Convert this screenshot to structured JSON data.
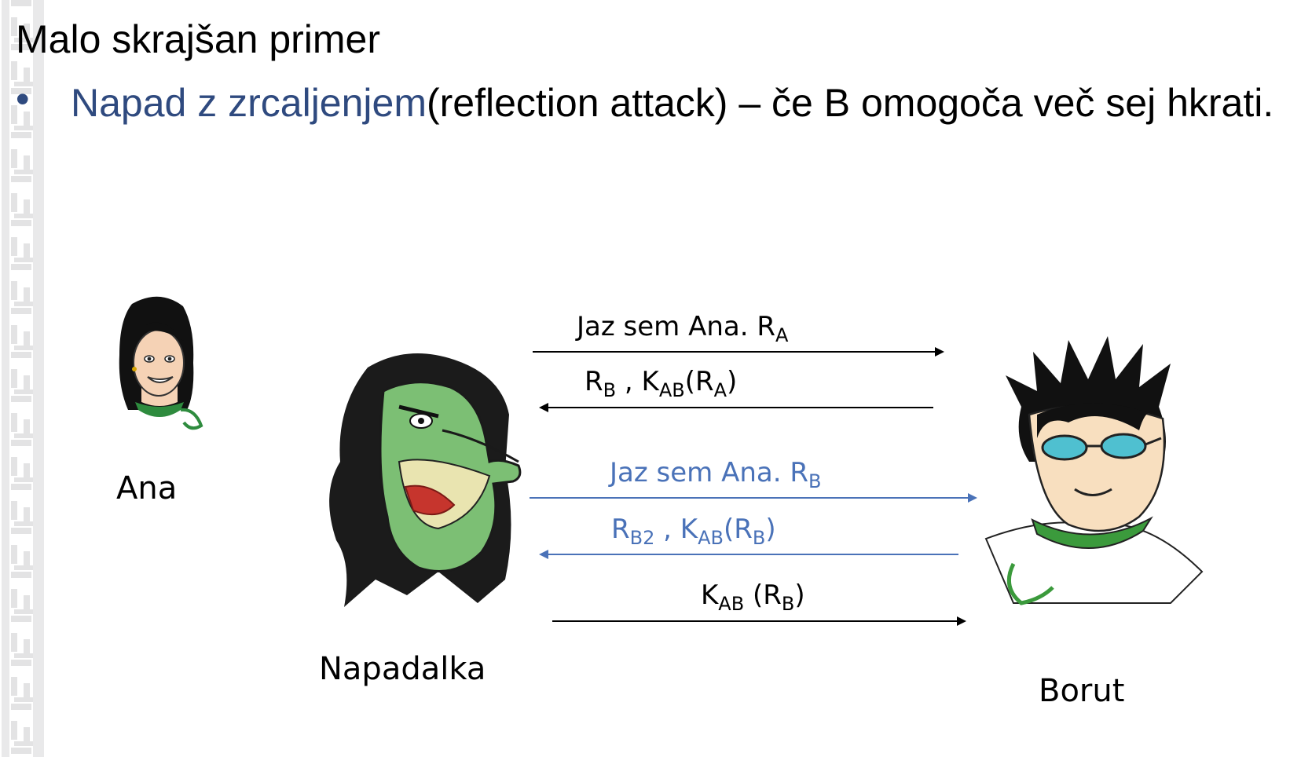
{
  "slide": {
    "title": "Malo skrajšan primer",
    "bullet_mark": "•",
    "highlight": "Napad z zrcaljenjem",
    "text": "(reflection attack) – če B omogoča več sej hkrati."
  },
  "actors": {
    "ana": "Ana",
    "napadalka": "Napadalka",
    "borut": "Borut"
  },
  "messages": [
    {
      "parts": [
        {
          "t": "Jaz sem Ana. R"
        },
        {
          "sub": "A"
        }
      ],
      "direction": "right",
      "color": "#000000"
    },
    {
      "parts": [
        {
          "t": "R"
        },
        {
          "sub": "B"
        },
        {
          "t": " , K"
        },
        {
          "sub": "AB"
        },
        {
          "t": "(R"
        },
        {
          "sub": "A"
        },
        {
          "t": ")"
        }
      ],
      "direction": "left",
      "color": "#000000"
    },
    {
      "parts": [
        {
          "t": "Jaz sem Ana. R"
        },
        {
          "sub": "B"
        }
      ],
      "direction": "right",
      "color": "#4a72b8"
    },
    {
      "parts": [
        {
          "t": "R"
        },
        {
          "sub": "B2"
        },
        {
          "t": " , K"
        },
        {
          "sub": "AB"
        },
        {
          "t": "(R"
        },
        {
          "sub": "B"
        },
        {
          "t": ")"
        }
      ],
      "direction": "left",
      "color": "#4a72b8"
    },
    {
      "parts": [
        {
          "t": "K"
        },
        {
          "sub": "AB"
        },
        {
          "t": " (R"
        },
        {
          "sub": "B"
        },
        {
          "t": ")"
        }
      ],
      "direction": "right",
      "color": "#000000"
    }
  ]
}
